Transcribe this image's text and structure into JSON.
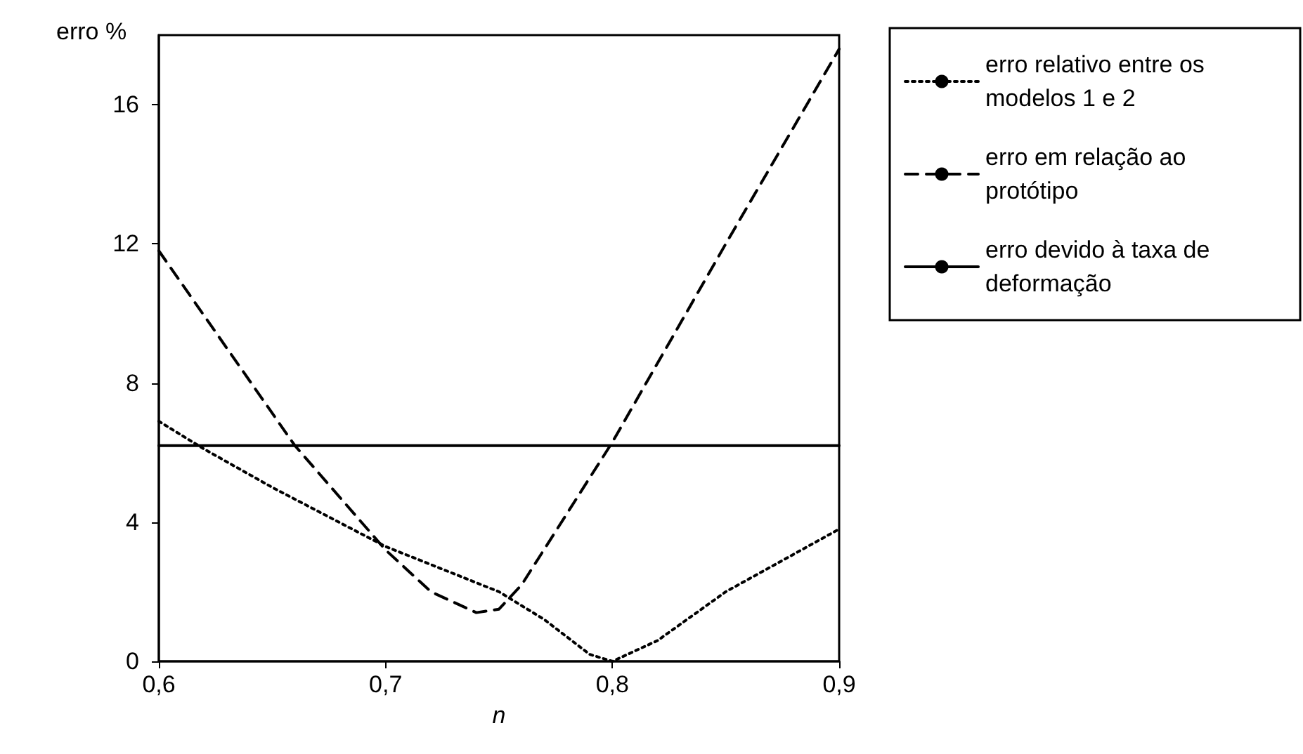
{
  "chart_data": {
    "type": "line",
    "xlabel": "n",
    "ylabel": "erro %",
    "xlim": [
      0.6,
      0.9
    ],
    "xticks": [
      {
        "value": 0.6,
        "label": "0,6"
      },
      {
        "value": 0.7,
        "label": "0,7"
      },
      {
        "value": 0.8,
        "label": "0,8"
      },
      {
        "value": 0.9,
        "label": "0,9"
      }
    ],
    "ylim": [
      0,
      18
    ],
    "yticks": [
      0,
      4,
      8,
      12,
      16
    ],
    "grid": false,
    "legend": "right",
    "marker": "none",
    "series": [
      {
        "name": "erro relativo entre os modelos 1 e 2",
        "color": "#000000",
        "line_style": "dotted",
        "x": [
          0.6,
          0.62,
          0.65,
          0.7,
          0.75,
          0.77,
          0.79,
          0.8,
          0.82,
          0.85,
          0.9
        ],
        "values": [
          6.9,
          6.1,
          5.0,
          3.3,
          2.0,
          1.2,
          0.2,
          0,
          0.6,
          2.0,
          3.8
        ]
      },
      {
        "name": "erro em relação ao protótipo",
        "color": "#000000",
        "line_style": "dashed",
        "x": [
          0.6,
          0.66,
          0.7,
          0.72,
          0.74,
          0.75,
          0.76,
          0.8,
          0.85,
          0.9
        ],
        "values": [
          11.8,
          6.2,
          3.2,
          2.0,
          1.4,
          1.5,
          2.2,
          6.3,
          12.0,
          17.6
        ]
      },
      {
        "name": "erro devido à taxa de deformação",
        "color": "#000000",
        "line_style": "solid",
        "x": [
          0.6,
          0.9
        ],
        "values": [
          6.2,
          6.2
        ]
      }
    ]
  }
}
